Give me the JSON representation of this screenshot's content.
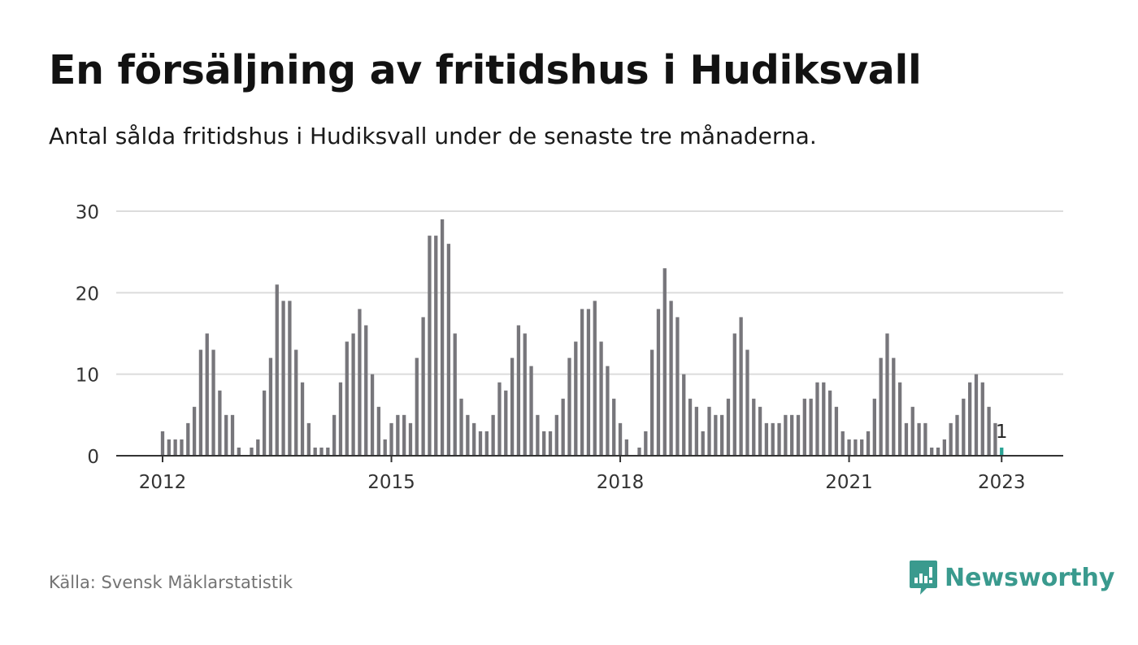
{
  "header": {
    "title": "En försäljning av fritidshus i Hudiksvall",
    "subtitle": "Antal sålda fritidshus i Hudiksvall under de senaste tre månaderna."
  },
  "footer": {
    "source": "Källa: Svensk Mäklarstatistik",
    "brand": "Newsworthy",
    "brand_icon": "chart-speech-bubble-icon"
  },
  "colors": {
    "bar": "#77767b",
    "highlight": "#2aa395",
    "grid": "#dcdcdc",
    "axis": "#333333",
    "brand": "#3a9a8e"
  },
  "chart_data": {
    "type": "bar",
    "start": "2012-01",
    "ylim": [
      0,
      30
    ],
    "yticks": [
      0,
      10,
      20,
      30
    ],
    "xticks": [
      "2012",
      "2015",
      "2018",
      "2021",
      "2023"
    ],
    "grid": true,
    "annotation": {
      "label": "1",
      "index": 132
    },
    "values": [
      3,
      2,
      2,
      2,
      4,
      6,
      13,
      15,
      13,
      8,
      5,
      5,
      1,
      0,
      1,
      2,
      8,
      12,
      21,
      19,
      19,
      13,
      9,
      4,
      1,
      1,
      1,
      5,
      9,
      14,
      15,
      18,
      16,
      10,
      6,
      2,
      4,
      5,
      5,
      4,
      12,
      17,
      27,
      27,
      29,
      26,
      15,
      7,
      5,
      4,
      3,
      3,
      5,
      9,
      8,
      12,
      16,
      15,
      11,
      5,
      3,
      3,
      5,
      7,
      12,
      14,
      18,
      18,
      19,
      14,
      11,
      7,
      4,
      2,
      0,
      1,
      3,
      13,
      18,
      23,
      19,
      17,
      10,
      7,
      6,
      3,
      6,
      5,
      5,
      7,
      15,
      17,
      13,
      7,
      6,
      4,
      4,
      4,
      5,
      5,
      5,
      7,
      7,
      9,
      9,
      8,
      6,
      3,
      2,
      2,
      2,
      3,
      7,
      12,
      15,
      12,
      9,
      4,
      6,
      4,
      4,
      1,
      1,
      2,
      4,
      5,
      7,
      9,
      10,
      9,
      6,
      4,
      1
    ]
  }
}
